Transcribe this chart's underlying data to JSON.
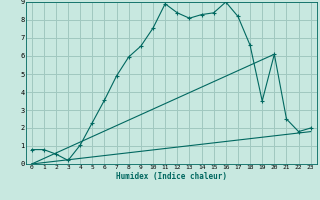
{
  "title": "",
  "xlabel": "Humidex (Indice chaleur)",
  "xlim": [
    -0.5,
    23.5
  ],
  "ylim": [
    0,
    9
  ],
  "xticks": [
    0,
    1,
    2,
    3,
    4,
    5,
    6,
    7,
    8,
    9,
    10,
    11,
    12,
    13,
    14,
    15,
    16,
    17,
    18,
    19,
    20,
    21,
    22,
    23
  ],
  "yticks": [
    0,
    1,
    2,
    3,
    4,
    5,
    6,
    7,
    8,
    9
  ],
  "bg_color": "#c8e8e0",
  "grid_color": "#a0c8c0",
  "line_color": "#006860",
  "line1_x": [
    0,
    1,
    2,
    3,
    4,
    5,
    6,
    7,
    8,
    9,
    10,
    11,
    12,
    13,
    14,
    15,
    16,
    17,
    18,
    19,
    20,
    21,
    22,
    23
  ],
  "line1_y": [
    0.8,
    0.8,
    0.55,
    0.2,
    1.05,
    2.3,
    3.55,
    4.9,
    5.95,
    6.55,
    7.55,
    8.9,
    8.4,
    8.1,
    8.3,
    8.4,
    9.0,
    8.2,
    6.6,
    3.5,
    6.1,
    2.5,
    1.8,
    2.0
  ],
  "line2_x": [
    0,
    20
  ],
  "line2_y": [
    0.0,
    6.1
  ],
  "line3_x": [
    0,
    23
  ],
  "line3_y": [
    0.0,
    1.8
  ]
}
